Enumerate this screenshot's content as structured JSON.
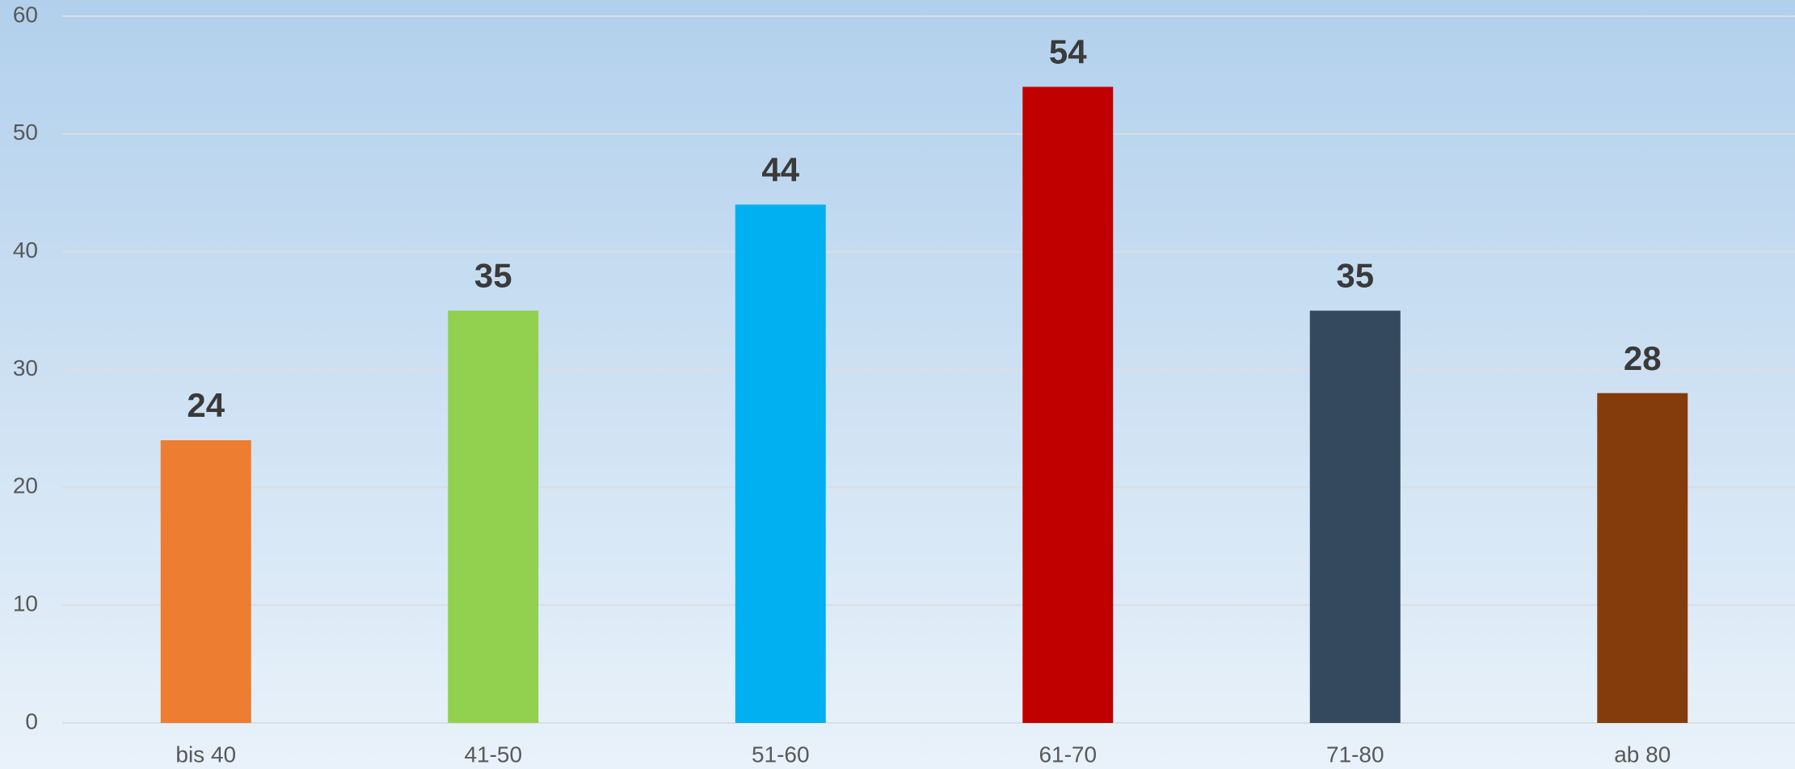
{
  "chart_data": {
    "type": "bar",
    "categories": [
      "bis 40",
      "41-50",
      "51-60",
      "61-70",
      "71-80",
      "ab 80"
    ],
    "values": [
      24,
      35,
      44,
      54,
      35,
      28
    ],
    "colors": [
      "#ed7d31",
      "#92d050",
      "#00b0f0",
      "#c00000",
      "#34495e",
      "#843c0c"
    ],
    "ylim": [
      0,
      60
    ],
    "yticks": [
      0,
      10,
      20,
      30,
      40,
      50,
      60
    ],
    "grid": true
  }
}
